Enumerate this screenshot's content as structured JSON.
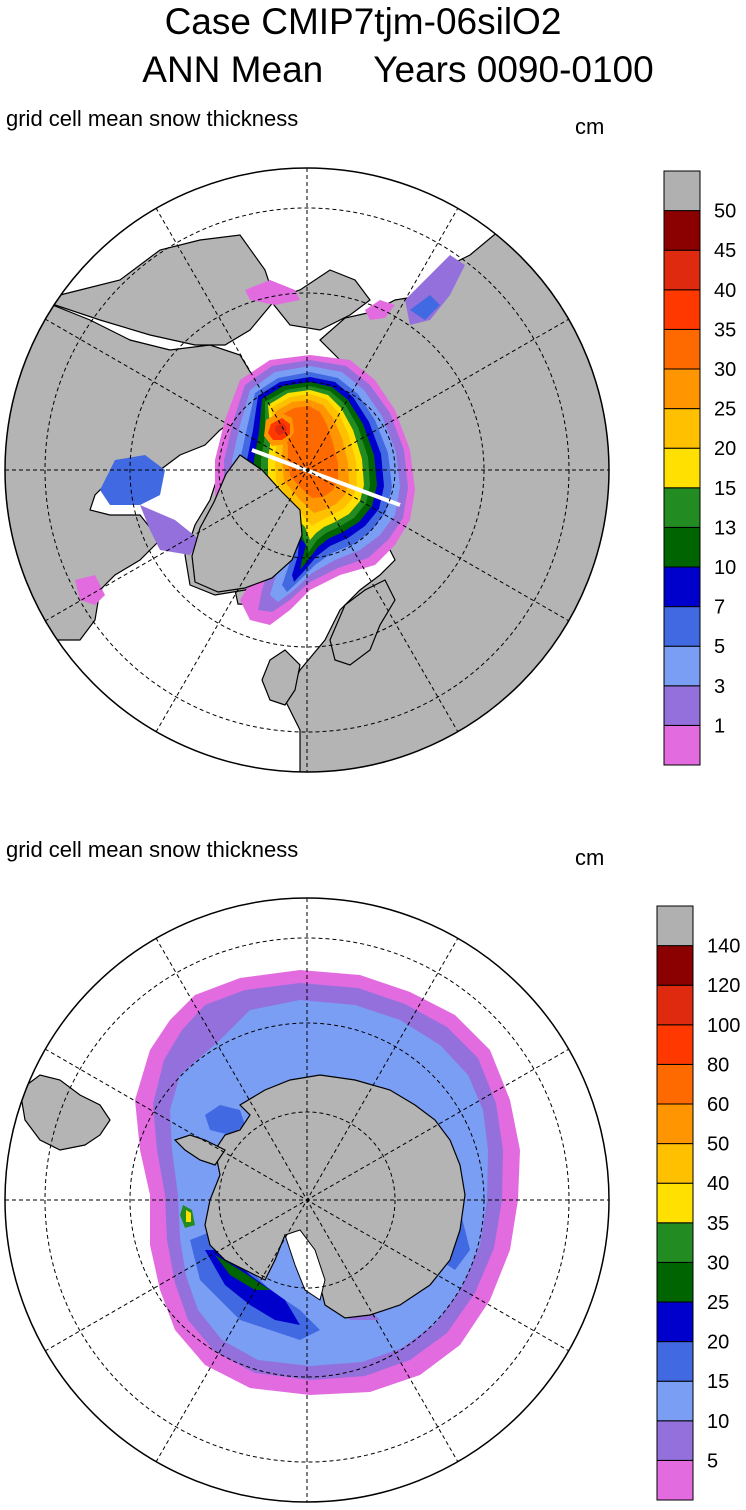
{
  "title": {
    "line1": "Case CMIP7tjm-06silO2",
    "line2_left": "ANN Mean",
    "line2_right": "Years 0090-0100"
  },
  "panels": [
    {
      "id": "north",
      "label": "grid cell mean snow thickness",
      "units": "cm",
      "colorbar": {
        "colors": [
          "#e36be0",
          "#9370db",
          "#7b9ef5",
          "#4169e1",
          "#0000cd",
          "#006400",
          "#228b22",
          "#ffe000",
          "#ffc000",
          "#ff9500",
          "#ff6a00",
          "#ff3800",
          "#e02a10",
          "#8b0000",
          "#b0b0b0"
        ],
        "labels": [
          "1",
          "3",
          "5",
          "7",
          "10",
          "13",
          "15",
          "20",
          "25",
          "30",
          "35",
          "40",
          "45",
          "50"
        ]
      }
    },
    {
      "id": "south",
      "label": "grid cell mean snow thickness",
      "units": "cm",
      "colorbar": {
        "colors": [
          "#e36be0",
          "#9370db",
          "#7b9ef5",
          "#4169e1",
          "#0000cd",
          "#006400",
          "#228b22",
          "#ffe000",
          "#ffc000",
          "#ff9500",
          "#ff6a00",
          "#ff3800",
          "#e02a10",
          "#8b0000",
          "#b0b0b0"
        ],
        "labels": [
          "5",
          "10",
          "15",
          "20",
          "25",
          "30",
          "35",
          "40",
          "50",
          "60",
          "80",
          "100",
          "120",
          "140"
        ]
      }
    }
  ],
  "colors": {
    "land": "#b4b4b4",
    "ocean": "#ffffff",
    "gridline": "#000000"
  }
}
